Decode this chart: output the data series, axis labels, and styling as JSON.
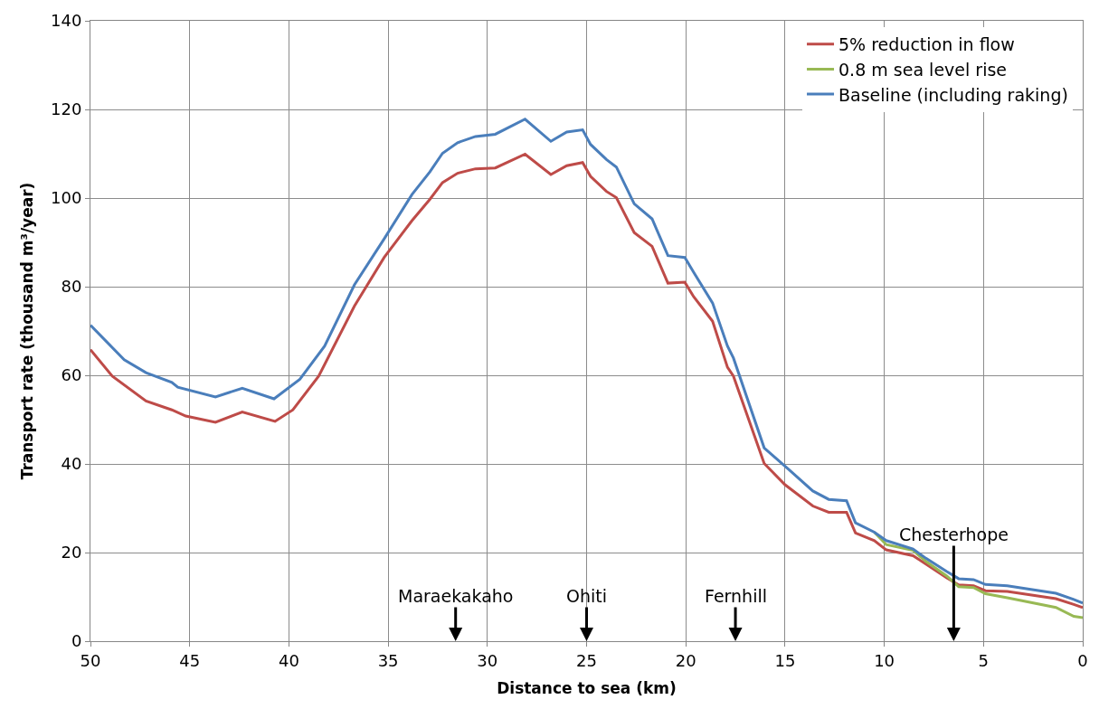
{
  "chart_data": {
    "type": "line",
    "xlabel": "Distance to sea (km)",
    "ylabel": "Transport rate (thousand m³/year)",
    "xlim": [
      50,
      0
    ],
    "xticks": [
      50,
      45,
      40,
      35,
      30,
      25,
      20,
      15,
      10,
      5,
      0
    ],
    "ylim": [
      0,
      140
    ],
    "yticks": [
      0,
      20,
      40,
      60,
      80,
      100,
      120,
      140
    ],
    "grid": true,
    "legend": "top right",
    "marker": "none",
    "line_style": "solid",
    "series": [
      {
        "name": "5% reduction in flow",
        "color": "#be4b48",
        "x": [
          50,
          48.9,
          47.2,
          45.9,
          45.2,
          43.7,
          42.35,
          40.7,
          39.8,
          38.5,
          36.7,
          35.2,
          33.8,
          32.9,
          32.26,
          31.5,
          30.6,
          29.6,
          28.1,
          26.8,
          26.0,
          25.2,
          24.8,
          24.0,
          23.5,
          22.6,
          21.7,
          20.9,
          20.05,
          19.6,
          18.65,
          17.9,
          17.6,
          16.05,
          15.0,
          13.6,
          12.8,
          11.9,
          11.45,
          10.5,
          9.9,
          8.55,
          7.9,
          6.85,
          6.25,
          5.5,
          4.9,
          3.8,
          1.35,
          0.45,
          0
        ],
        "values": [
          65.8,
          59.8,
          54.2,
          52.2,
          50.8,
          49.4,
          51.7,
          49.6,
          52.2,
          59.8,
          75.6,
          86.6,
          94.9,
          99.7,
          103.5,
          105.6,
          106.6,
          106.8,
          109.9,
          105.3,
          107.3,
          108.0,
          104.9,
          101.5,
          100.1,
          92.2,
          89.1,
          80.8,
          81.0,
          77.7,
          72.2,
          61.8,
          59.8,
          40.1,
          35.3,
          30.5,
          29.1,
          29.1,
          24.4,
          22.7,
          20.6,
          19.3,
          17.4,
          14.3,
          12.7,
          12.5,
          11.4,
          11.2,
          9.6,
          8.3,
          7.6
        ]
      },
      {
        "name": "0.8 m sea level rise",
        "color": "#98b954",
        "x": [
          10.5,
          9.9,
          8.55,
          7.9,
          6.85,
          6.25,
          5.5,
          4.9,
          3.8,
          1.35,
          0.45,
          0
        ],
        "values": [
          24.6,
          21.8,
          20.5,
          18.0,
          14.7,
          12.3,
          12.1,
          10.7,
          9.8,
          7.6,
          5.6,
          5.3
        ]
      },
      {
        "name": "Baseline (including raking)",
        "color": "#4a7ebb",
        "x": [
          50,
          48.3,
          47.2,
          45.9,
          45.6,
          43.7,
          42.35,
          40.75,
          39.45,
          38.2,
          36.7,
          35.2,
          33.8,
          32.9,
          32.26,
          31.5,
          30.6,
          29.6,
          28.1,
          26.8,
          26.0,
          25.2,
          24.8,
          24.0,
          23.5,
          22.6,
          21.7,
          20.9,
          20.05,
          19.6,
          18.65,
          17.9,
          17.6,
          16.05,
          14.8,
          13.6,
          12.8,
          11.9,
          11.45,
          10.5,
          9.9,
          8.55,
          7.9,
          6.85,
          6.25,
          5.5,
          4.9,
          3.8,
          1.35,
          0.45,
          0
        ],
        "values": [
          71.3,
          63.5,
          60.6,
          58.4,
          57.3,
          55.1,
          57.1,
          54.7,
          59.1,
          66.6,
          80.4,
          90.8,
          100.8,
          105.9,
          110.1,
          112.5,
          113.9,
          114.4,
          117.8,
          112.8,
          114.9,
          115.4,
          112.1,
          108.7,
          107.0,
          98.7,
          95.3,
          87.0,
          86.6,
          83.2,
          76.3,
          66.6,
          63.9,
          43.6,
          38.7,
          33.9,
          32.0,
          31.7,
          26.7,
          24.6,
          22.7,
          20.8,
          18.7,
          15.7,
          14.1,
          13.9,
          12.8,
          12.5,
          10.8,
          9.4,
          8.6
        ]
      }
    ],
    "annotations": [
      "Maraekakaho",
      "Ohiti",
      "Fernhill",
      "Chesterhope"
    ]
  }
}
